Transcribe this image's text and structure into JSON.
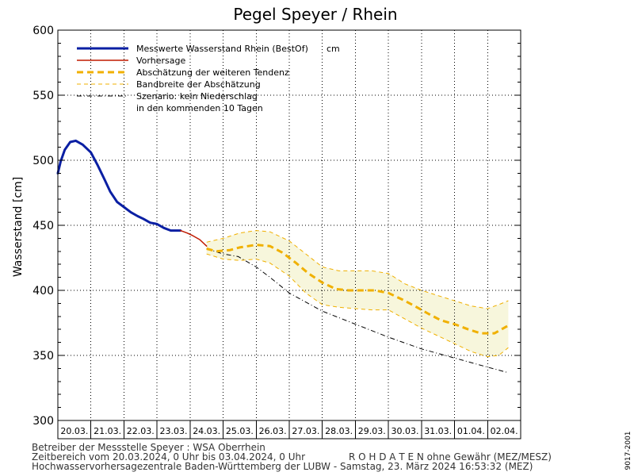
{
  "chart_data": {
    "type": "line",
    "title": "Pegel Speyer / Rhein",
    "ylabel": "Wasserstand [cm]",
    "ylim": [
      300,
      600
    ],
    "yticks": [
      300,
      350,
      400,
      450,
      500,
      550,
      600
    ],
    "xlim": [
      "2024-03-20T00:00",
      "2024-04-03T00:00"
    ],
    "xtick_labels": [
      "20.03.",
      "21.03.",
      "22.03.",
      "23.03.",
      "24.03.",
      "25.03.",
      "26.03.",
      "27.03.",
      "28.03.",
      "29.03.",
      "30.03.",
      "31.03.",
      "01.04.",
      "02.04."
    ],
    "grid": true,
    "legend_position": "top-left",
    "series": [
      {
        "name": "Messwerte Wasserstand Rhein (BestOf)",
        "unit": "cm",
        "color": "#0a1fa3",
        "x": [
          "2024-03-20T00:00",
          "2024-03-20T02:00",
          "2024-03-20T05:00",
          "2024-03-20T09:00",
          "2024-03-20T13:00",
          "2024-03-20T18:00",
          "2024-03-21T00:00",
          "2024-03-21T05:00",
          "2024-03-21T10:00",
          "2024-03-21T14:00",
          "2024-03-21T19:00",
          "2024-03-22T00:00",
          "2024-03-22T05:00",
          "2024-03-22T10:00",
          "2024-03-22T14:00",
          "2024-03-22T19:00",
          "2024-03-23T00:00",
          "2024-03-23T05:00",
          "2024-03-23T10:00",
          "2024-03-23T17:00"
        ],
        "y": [
          490,
          499,
          508,
          514,
          515,
          512,
          506,
          496,
          485,
          476,
          468,
          464,
          460,
          457,
          455,
          452,
          451,
          448,
          446,
          446
        ]
      },
      {
        "name": "Vorhersage",
        "color": "#c01a00",
        "x": [
          "2024-03-23T17:00",
          "2024-03-23T22:00",
          "2024-03-24T02:00",
          "2024-03-24T07:00",
          "2024-03-24T12:00"
        ],
        "y": [
          446,
          444,
          442,
          439,
          434
        ]
      },
      {
        "name": "Abschätzung der weiteren Tendenz",
        "color": "#f0b000",
        "x": [
          "2024-03-24T12:00",
          "2024-03-24T19:00",
          "2024-03-25T05:00",
          "2024-03-25T12:00",
          "2024-03-26T00:00",
          "2024-03-26T10:00",
          "2024-03-26T19:00",
          "2024-03-27T05:00",
          "2024-03-27T14:00",
          "2024-03-28T00:00",
          "2024-03-28T10:00",
          "2024-03-28T19:00",
          "2024-03-29T05:00",
          "2024-03-29T14:00",
          "2024-03-30T00:00",
          "2024-03-30T10:00",
          "2024-03-30T19:00",
          "2024-03-31T05:00",
          "2024-03-31T14:00",
          "2024-04-01T00:00",
          "2024-04-01T10:00",
          "2024-04-01T19:00",
          "2024-04-02T05:00",
          "2024-04-02T15:00"
        ],
        "y": [
          432,
          430,
          431,
          433,
          435,
          434,
          429,
          421,
          413,
          406,
          401,
          400,
          400,
          400,
          398,
          393,
          388,
          382,
          377,
          374,
          370,
          367,
          367,
          373
        ]
      },
      {
        "name": "Szenario: kein Niederschlag",
        "name_continued": "in den kommenden 10 Tagen",
        "color": "#000000",
        "x": [
          "2024-03-24T12:00",
          "2024-03-25T00:00",
          "2024-03-25T11:00",
          "2024-03-26T00:00",
          "2024-03-26T10:00",
          "2024-03-27T00:00",
          "2024-03-28T00:00",
          "2024-03-29T00:00",
          "2024-03-30T00:00",
          "2024-03-31T00:00",
          "2024-04-01T00:00",
          "2024-04-02T00:00",
          "2024-04-02T14:00"
        ],
        "y": [
          432,
          428,
          426,
          418,
          410,
          398,
          384,
          374,
          364,
          355,
          348,
          341,
          337
        ]
      }
    ],
    "band": {
      "name": "Bandbreite der Abschätzung",
      "color": "#f0b000",
      "x": [
        "2024-03-24T12:00",
        "2024-03-25T00:00",
        "2024-03-25T12:00",
        "2024-03-26T00:00",
        "2024-03-26T10:00",
        "2024-03-27T00:00",
        "2024-03-27T12:00",
        "2024-03-28T00:00",
        "2024-03-28T12:00",
        "2024-03-29T00:00",
        "2024-03-29T12:00",
        "2024-03-30T00:00",
        "2024-03-30T12:00",
        "2024-03-31T00:00",
        "2024-03-31T12:00",
        "2024-04-01T00:00",
        "2024-04-01T12:00",
        "2024-04-02T00:00",
        "2024-04-02T08:00",
        "2024-04-02T15:00"
      ],
      "upper": [
        437,
        440,
        444,
        446,
        445,
        438,
        428,
        418,
        415,
        415,
        415,
        413,
        405,
        400,
        396,
        392,
        388,
        386,
        389,
        392
      ],
      "lower": [
        428,
        424,
        423,
        424,
        421,
        411,
        398,
        389,
        387,
        386,
        385,
        385,
        378,
        371,
        365,
        359,
        353,
        349,
        350,
        356
      ]
    }
  },
  "colors": {
    "band_fill": "#f7f6dc",
    "axis": "#000000",
    "footer_text": "#333333"
  },
  "footer": {
    "operator": "Betreiber der Messstelle Speyer : WSA Oberrhein",
    "time_range": "Zeitbereich vom 20.03.2024, 0 Uhr bis 03.04.2024, 0 Uhr",
    "raw_data_note": "R O H D A T E N ohne Gewähr (MEZ/MESZ)",
    "issuer": "Hochwasservorhersagezentrale Baden-Württemberg der LUBW - Samstag, 23. März 2024 16:53:32 (MEZ)"
  },
  "side_label": "9017-2001"
}
